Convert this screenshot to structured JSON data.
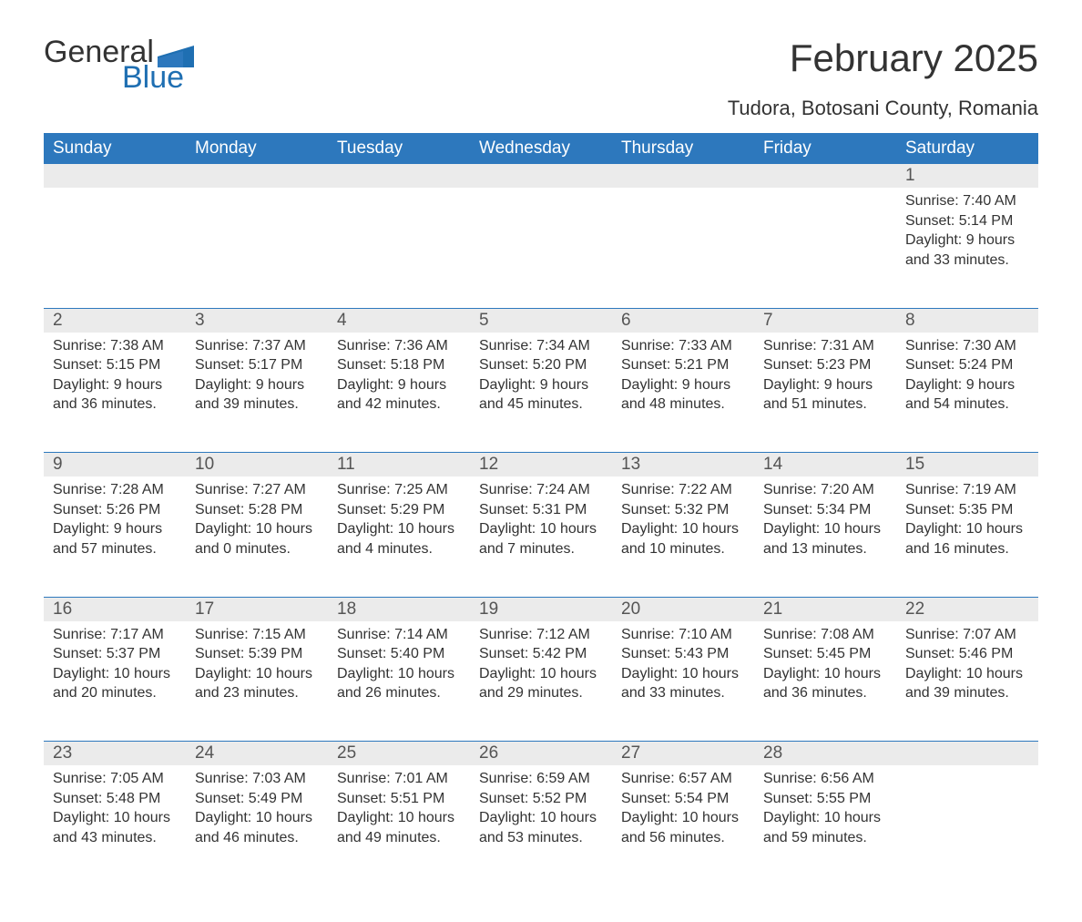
{
  "logo": {
    "word1": "General",
    "word2": "Blue",
    "accent_color": "#1f6fb2"
  },
  "title": "February 2025",
  "location": "Tudora, Botosani County, Romania",
  "colors": {
    "header_bg": "#2d78bd",
    "header_text": "#ffffff",
    "daynum_bg": "#ebebeb",
    "rule": "#2d78bd",
    "body_bg": "#ffffff",
    "text": "#333333"
  },
  "typography": {
    "title_fontsize": 42,
    "subtitle_fontsize": 22,
    "dayheader_fontsize": 19,
    "daynum_fontsize": 19,
    "body_fontsize": 16
  },
  "calendar": {
    "day_headers": [
      "Sunday",
      "Monday",
      "Tuesday",
      "Wednesday",
      "Thursday",
      "Friday",
      "Saturday"
    ],
    "weeks": [
      [
        null,
        null,
        null,
        null,
        null,
        null,
        {
          "n": "1",
          "sunrise": "Sunrise: 7:40 AM",
          "sunset": "Sunset: 5:14 PM",
          "dl1": "Daylight: 9 hours",
          "dl2": "and 33 minutes."
        }
      ],
      [
        {
          "n": "2",
          "sunrise": "Sunrise: 7:38 AM",
          "sunset": "Sunset: 5:15 PM",
          "dl1": "Daylight: 9 hours",
          "dl2": "and 36 minutes."
        },
        {
          "n": "3",
          "sunrise": "Sunrise: 7:37 AM",
          "sunset": "Sunset: 5:17 PM",
          "dl1": "Daylight: 9 hours",
          "dl2": "and 39 minutes."
        },
        {
          "n": "4",
          "sunrise": "Sunrise: 7:36 AM",
          "sunset": "Sunset: 5:18 PM",
          "dl1": "Daylight: 9 hours",
          "dl2": "and 42 minutes."
        },
        {
          "n": "5",
          "sunrise": "Sunrise: 7:34 AM",
          "sunset": "Sunset: 5:20 PM",
          "dl1": "Daylight: 9 hours",
          "dl2": "and 45 minutes."
        },
        {
          "n": "6",
          "sunrise": "Sunrise: 7:33 AM",
          "sunset": "Sunset: 5:21 PM",
          "dl1": "Daylight: 9 hours",
          "dl2": "and 48 minutes."
        },
        {
          "n": "7",
          "sunrise": "Sunrise: 7:31 AM",
          "sunset": "Sunset: 5:23 PM",
          "dl1": "Daylight: 9 hours",
          "dl2": "and 51 minutes."
        },
        {
          "n": "8",
          "sunrise": "Sunrise: 7:30 AM",
          "sunset": "Sunset: 5:24 PM",
          "dl1": "Daylight: 9 hours",
          "dl2": "and 54 minutes."
        }
      ],
      [
        {
          "n": "9",
          "sunrise": "Sunrise: 7:28 AM",
          "sunset": "Sunset: 5:26 PM",
          "dl1": "Daylight: 9 hours",
          "dl2": "and 57 minutes."
        },
        {
          "n": "10",
          "sunrise": "Sunrise: 7:27 AM",
          "sunset": "Sunset: 5:28 PM",
          "dl1": "Daylight: 10 hours",
          "dl2": "and 0 minutes."
        },
        {
          "n": "11",
          "sunrise": "Sunrise: 7:25 AM",
          "sunset": "Sunset: 5:29 PM",
          "dl1": "Daylight: 10 hours",
          "dl2": "and 4 minutes."
        },
        {
          "n": "12",
          "sunrise": "Sunrise: 7:24 AM",
          "sunset": "Sunset: 5:31 PM",
          "dl1": "Daylight: 10 hours",
          "dl2": "and 7 minutes."
        },
        {
          "n": "13",
          "sunrise": "Sunrise: 7:22 AM",
          "sunset": "Sunset: 5:32 PM",
          "dl1": "Daylight: 10 hours",
          "dl2": "and 10 minutes."
        },
        {
          "n": "14",
          "sunrise": "Sunrise: 7:20 AM",
          "sunset": "Sunset: 5:34 PM",
          "dl1": "Daylight: 10 hours",
          "dl2": "and 13 minutes."
        },
        {
          "n": "15",
          "sunrise": "Sunrise: 7:19 AM",
          "sunset": "Sunset: 5:35 PM",
          "dl1": "Daylight: 10 hours",
          "dl2": "and 16 minutes."
        }
      ],
      [
        {
          "n": "16",
          "sunrise": "Sunrise: 7:17 AM",
          "sunset": "Sunset: 5:37 PM",
          "dl1": "Daylight: 10 hours",
          "dl2": "and 20 minutes."
        },
        {
          "n": "17",
          "sunrise": "Sunrise: 7:15 AM",
          "sunset": "Sunset: 5:39 PM",
          "dl1": "Daylight: 10 hours",
          "dl2": "and 23 minutes."
        },
        {
          "n": "18",
          "sunrise": "Sunrise: 7:14 AM",
          "sunset": "Sunset: 5:40 PM",
          "dl1": "Daylight: 10 hours",
          "dl2": "and 26 minutes."
        },
        {
          "n": "19",
          "sunrise": "Sunrise: 7:12 AM",
          "sunset": "Sunset: 5:42 PM",
          "dl1": "Daylight: 10 hours",
          "dl2": "and 29 minutes."
        },
        {
          "n": "20",
          "sunrise": "Sunrise: 7:10 AM",
          "sunset": "Sunset: 5:43 PM",
          "dl1": "Daylight: 10 hours",
          "dl2": "and 33 minutes."
        },
        {
          "n": "21",
          "sunrise": "Sunrise: 7:08 AM",
          "sunset": "Sunset: 5:45 PM",
          "dl1": "Daylight: 10 hours",
          "dl2": "and 36 minutes."
        },
        {
          "n": "22",
          "sunrise": "Sunrise: 7:07 AM",
          "sunset": "Sunset: 5:46 PM",
          "dl1": "Daylight: 10 hours",
          "dl2": "and 39 minutes."
        }
      ],
      [
        {
          "n": "23",
          "sunrise": "Sunrise: 7:05 AM",
          "sunset": "Sunset: 5:48 PM",
          "dl1": "Daylight: 10 hours",
          "dl2": "and 43 minutes."
        },
        {
          "n": "24",
          "sunrise": "Sunrise: 7:03 AM",
          "sunset": "Sunset: 5:49 PM",
          "dl1": "Daylight: 10 hours",
          "dl2": "and 46 minutes."
        },
        {
          "n": "25",
          "sunrise": "Sunrise: 7:01 AM",
          "sunset": "Sunset: 5:51 PM",
          "dl1": "Daylight: 10 hours",
          "dl2": "and 49 minutes."
        },
        {
          "n": "26",
          "sunrise": "Sunrise: 6:59 AM",
          "sunset": "Sunset: 5:52 PM",
          "dl1": "Daylight: 10 hours",
          "dl2": "and 53 minutes."
        },
        {
          "n": "27",
          "sunrise": "Sunrise: 6:57 AM",
          "sunset": "Sunset: 5:54 PM",
          "dl1": "Daylight: 10 hours",
          "dl2": "and 56 minutes."
        },
        {
          "n": "28",
          "sunrise": "Sunrise: 6:56 AM",
          "sunset": "Sunset: 5:55 PM",
          "dl1": "Daylight: 10 hours",
          "dl2": "and 59 minutes."
        },
        null
      ]
    ]
  }
}
